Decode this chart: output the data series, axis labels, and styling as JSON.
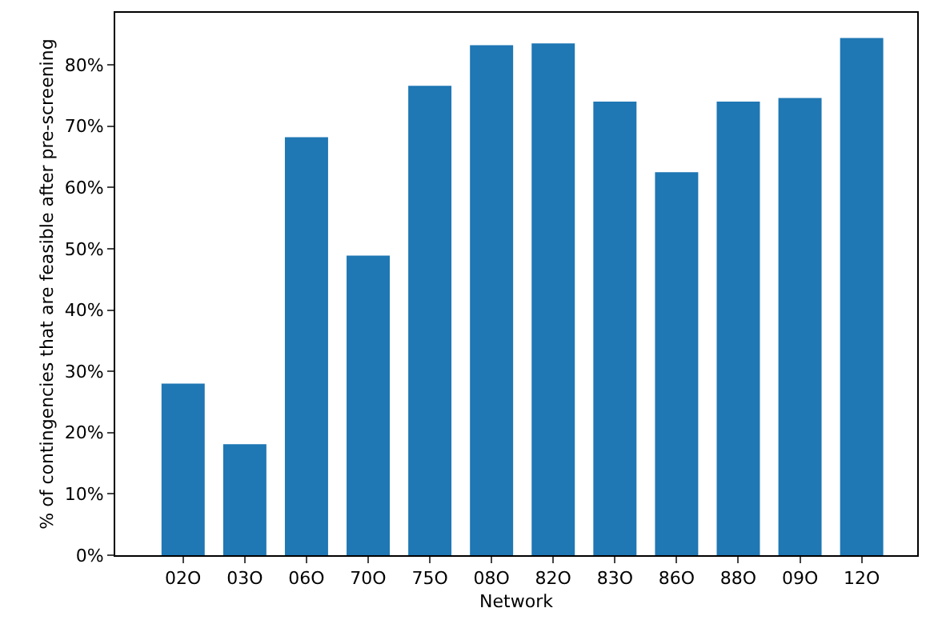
{
  "chart_data": {
    "type": "bar",
    "xlabel": "Network",
    "ylabel": "% of contingencies that are feasible after pre-screening",
    "categories": [
      "02O",
      "03O",
      "06O",
      "70O",
      "75O",
      "08O",
      "82O",
      "83O",
      "86O",
      "88O",
      "09O",
      "12O"
    ],
    "values": [
      28.0,
      18.1,
      68.2,
      48.9,
      76.6,
      83.2,
      83.5,
      74.0,
      62.5,
      74.0,
      74.6,
      84.4
    ],
    "color": "#1f77b4",
    "ylim": [
      0,
      88.5
    ],
    "yticks": [
      {
        "value": 0,
        "label": "0%"
      },
      {
        "value": 10,
        "label": "10%"
      },
      {
        "value": 20,
        "label": "20%"
      },
      {
        "value": 30,
        "label": "30%"
      },
      {
        "value": 40,
        "label": "40%"
      },
      {
        "value": 50,
        "label": "50%"
      },
      {
        "value": 60,
        "label": "60%"
      },
      {
        "value": 70,
        "label": "70%"
      },
      {
        "value": 80,
        "label": "80%"
      }
    ]
  }
}
